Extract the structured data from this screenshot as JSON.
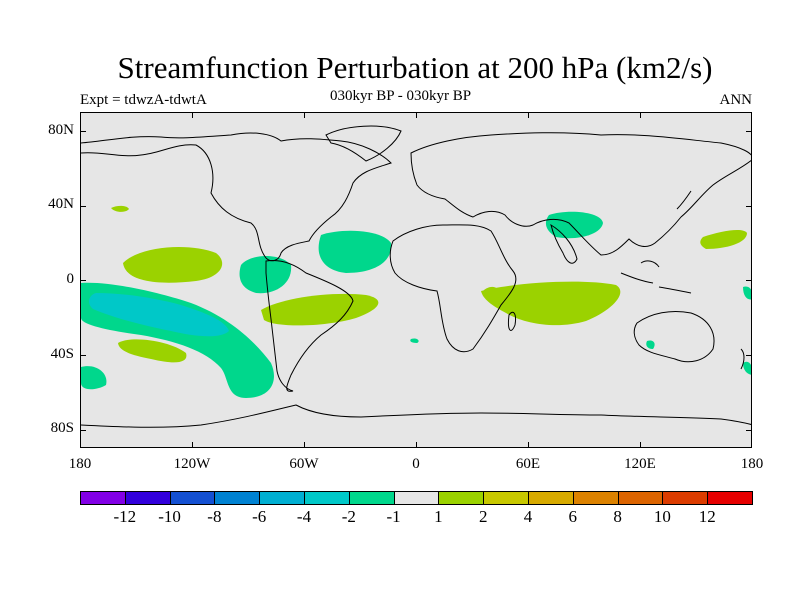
{
  "title": "Streamfunction Perturbation at 200 hPa (km2/s)",
  "subtitle_left": "Expt = tdwzA-tdwtA",
  "subtitle_center": "030kyr BP - 030kyr BP",
  "subtitle_right": "ANN",
  "lat_labels": [
    "80N",
    "40N",
    "0",
    "40S",
    "80S"
  ],
  "lon_labels": [
    "180",
    "120W",
    "60W",
    "0",
    "60E",
    "120E",
    "180"
  ],
  "colors": {
    "background": "#e6e6e6",
    "neg_1_to_2": "#00d78c",
    "neg_2_to_4": "#00c8c8",
    "pos_1_to_2": "#9bd200",
    "coast": "#000000"
  },
  "colorbar": {
    "colors": [
      "#8200e6",
      "#3200dc",
      "#1450d2",
      "#0082d2",
      "#00afd2",
      "#00c8c8",
      "#00d78c",
      "#e6e6e6",
      "#9bd200",
      "#c8c800",
      "#d7aa00",
      "#dc8200",
      "#dc6400",
      "#dc3c00",
      "#e60000"
    ],
    "labels": [
      "-12",
      "-10",
      "-8",
      "-6",
      "-4",
      "-2",
      "-1",
      "1",
      "2",
      "4",
      "6",
      "8",
      "10",
      "12"
    ]
  }
}
